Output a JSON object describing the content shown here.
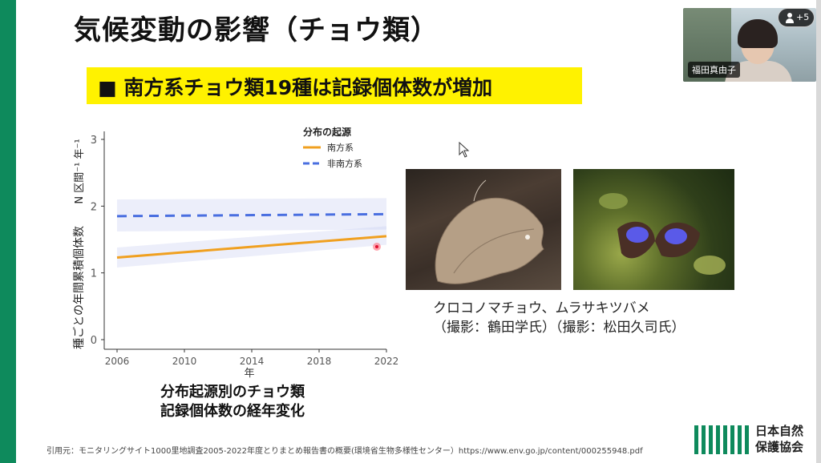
{
  "slide": {
    "title": "気候変動の影響（チョウ類）",
    "banner": "■ 南方系チョウ類19種は記録個体数が増加",
    "caption_line1": "分布起源別のチョウ類",
    "caption_line2": "記録個体数の経年変化",
    "photo_caption_line1": "クロコノマチョウ、ムラサキツバメ",
    "photo_caption_line2": "（撮影：鶴田学氏）（撮影：松田久司氏）",
    "citation": "引用元：モニタリングサイト1000里地調査2005-2022年度とりまとめ報告書の概要(環境省生物多様性センター）https://www.env.go.jp/content/000255948.pdf",
    "logo_line1": "日本自然",
    "logo_line2": "保護協会",
    "accent_color": "#0e8a5c",
    "banner_color": "#fff200"
  },
  "video": {
    "participant_name": "福田真由子",
    "extra_participants": "+5",
    "participants_icon": "person-icon"
  },
  "chart_data": {
    "type": "line",
    "title": "",
    "xlabel": "年",
    "ylabel": "種ごとの年間累積個体数",
    "ylabel_unit": "N 区間⁻¹ 年⁻¹",
    "xlim": [
      2006,
      2022
    ],
    "ylim": [
      0,
      3
    ],
    "x_ticks": [
      2006,
      2010,
      2014,
      2018,
      2022
    ],
    "y_ticks": [
      0,
      1,
      2,
      3
    ],
    "legend_title": "分布の起源",
    "legend_position": "top-right",
    "grid": false,
    "series": [
      {
        "name": "南方系",
        "color": "#f0a020",
        "style": "solid",
        "x": [
          2006,
          2022
        ],
        "y": [
          1.23,
          1.55
        ],
        "ci_low": [
          1.08,
          1.42
        ],
        "ci_high": [
          1.38,
          1.7
        ]
      },
      {
        "name": "非南方系",
        "color": "#4a6fe0",
        "style": "dashed",
        "x": [
          2006,
          2022
        ],
        "y": [
          1.85,
          1.88
        ],
        "ci_low": [
          1.62,
          1.65
        ],
        "ci_high": [
          2.1,
          2.12
        ]
      }
    ]
  }
}
